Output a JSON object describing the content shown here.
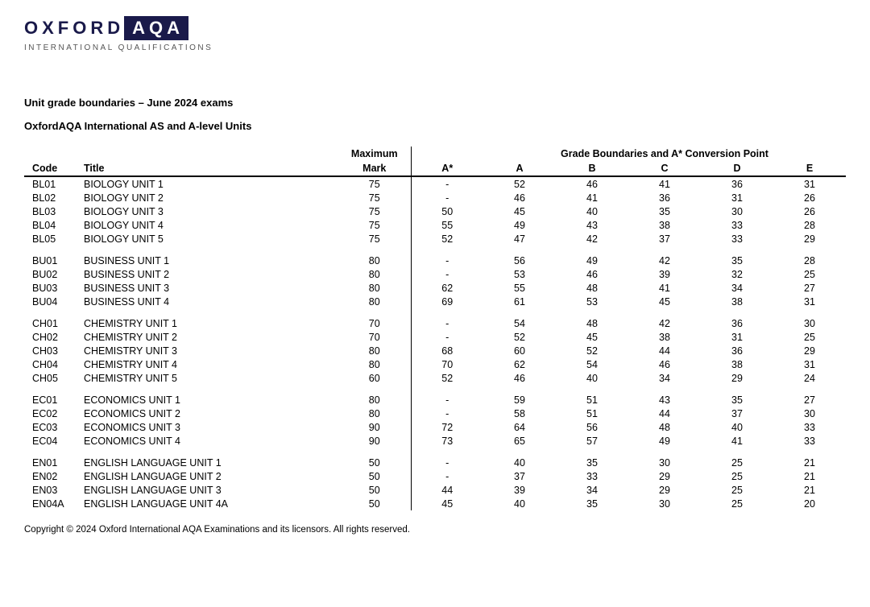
{
  "logo": {
    "oxford": "OXFORD",
    "aqa": "AQA",
    "sub": "INTERNATIONAL QUALIFICATIONS"
  },
  "heading": "Unit grade boundaries – June 2024 exams",
  "subheading": "OxfordAQA International AS and A-level Units",
  "tableHeaders": {
    "maximum": "Maximum",
    "gradeGroup": "Grade Boundaries and A* Conversion Point",
    "code": "Code",
    "title": "Title",
    "mark": "Mark",
    "grades": [
      "A*",
      "A",
      "B",
      "C",
      "D",
      "E"
    ]
  },
  "groups": [
    [
      {
        "code": "BL01",
        "title": "BIOLOGY UNIT 1",
        "max": 75,
        "g": [
          "-",
          52,
          46,
          41,
          36,
          31
        ]
      },
      {
        "code": "BL02",
        "title": "BIOLOGY UNIT 2",
        "max": 75,
        "g": [
          "-",
          46,
          41,
          36,
          31,
          26
        ]
      },
      {
        "code": "BL03",
        "title": "BIOLOGY UNIT 3",
        "max": 75,
        "g": [
          50,
          45,
          40,
          35,
          30,
          26
        ]
      },
      {
        "code": "BL04",
        "title": "BIOLOGY UNIT 4",
        "max": 75,
        "g": [
          55,
          49,
          43,
          38,
          33,
          28
        ]
      },
      {
        "code": "BL05",
        "title": "BIOLOGY UNIT 5",
        "max": 75,
        "g": [
          52,
          47,
          42,
          37,
          33,
          29
        ]
      }
    ],
    [
      {
        "code": "BU01",
        "title": "BUSINESS UNIT 1",
        "max": 80,
        "g": [
          "-",
          56,
          49,
          42,
          35,
          28
        ]
      },
      {
        "code": "BU02",
        "title": "BUSINESS UNIT 2",
        "max": 80,
        "g": [
          "-",
          53,
          46,
          39,
          32,
          25
        ]
      },
      {
        "code": "BU03",
        "title": "BUSINESS UNIT 3",
        "max": 80,
        "g": [
          62,
          55,
          48,
          41,
          34,
          27
        ]
      },
      {
        "code": "BU04",
        "title": "BUSINESS UNIT 4",
        "max": 80,
        "g": [
          69,
          61,
          53,
          45,
          38,
          31
        ]
      }
    ],
    [
      {
        "code": "CH01",
        "title": "CHEMISTRY UNIT 1",
        "max": 70,
        "g": [
          "-",
          54,
          48,
          42,
          36,
          30
        ]
      },
      {
        "code": "CH02",
        "title": "CHEMISTRY UNIT 2",
        "max": 70,
        "g": [
          "-",
          52,
          45,
          38,
          31,
          25
        ]
      },
      {
        "code": "CH03",
        "title": "CHEMISTRY UNIT 3",
        "max": 80,
        "g": [
          68,
          60,
          52,
          44,
          36,
          29
        ]
      },
      {
        "code": "CH04",
        "title": "CHEMISTRY UNIT 4",
        "max": 80,
        "g": [
          70,
          62,
          54,
          46,
          38,
          31
        ]
      },
      {
        "code": "CH05",
        "title": "CHEMISTRY UNIT 5",
        "max": 60,
        "g": [
          52,
          46,
          40,
          34,
          29,
          24
        ]
      }
    ],
    [
      {
        "code": "EC01",
        "title": "ECONOMICS UNIT 1",
        "max": 80,
        "g": [
          "-",
          59,
          51,
          43,
          35,
          27
        ]
      },
      {
        "code": "EC02",
        "title": "ECONOMICS UNIT 2",
        "max": 80,
        "g": [
          "-",
          58,
          51,
          44,
          37,
          30
        ]
      },
      {
        "code": "EC03",
        "title": "ECONOMICS UNIT 3",
        "max": 90,
        "g": [
          72,
          64,
          56,
          48,
          40,
          33
        ]
      },
      {
        "code": "EC04",
        "title": "ECONOMICS UNIT 4",
        "max": 90,
        "g": [
          73,
          65,
          57,
          49,
          41,
          33
        ]
      }
    ],
    [
      {
        "code": "EN01",
        "title": "ENGLISH LANGUAGE UNIT 1",
        "max": 50,
        "g": [
          "-",
          40,
          35,
          30,
          25,
          21
        ]
      },
      {
        "code": "EN02",
        "title": "ENGLISH LANGUAGE UNIT 2",
        "max": 50,
        "g": [
          "-",
          37,
          33,
          29,
          25,
          21
        ]
      },
      {
        "code": "EN03",
        "title": "ENGLISH LANGUAGE UNIT 3",
        "max": 50,
        "g": [
          44,
          39,
          34,
          29,
          25,
          21
        ]
      },
      {
        "code": "EN04A",
        "title": "ENGLISH LANGUAGE UNIT 4A",
        "max": 50,
        "g": [
          45,
          40,
          35,
          30,
          25,
          20
        ]
      }
    ]
  ],
  "footer": "Copyright © 2024 Oxford International AQA Examinations and its licensors. All rights reserved."
}
